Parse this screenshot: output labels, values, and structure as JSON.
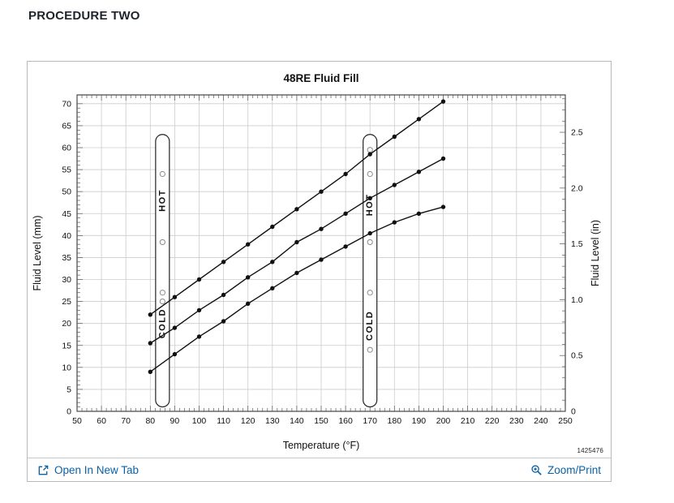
{
  "page": {
    "heading": "PROCEDURE TWO"
  },
  "panel": {
    "doc_number": "1425476"
  },
  "footer": {
    "open_label": "Open In New Tab",
    "zoom_label": "Zoom/Print"
  },
  "colors": {
    "link": "#0b61a4",
    "grid": "#cccccc",
    "line": "#111111",
    "axis": "#444444",
    "panel_border": "#b9b9b9"
  },
  "chart_data": {
    "type": "line",
    "title": "48RE Fluid Fill",
    "xlabel": "Temperature (°F)",
    "ylabel_left": "Fluid Level (mm)",
    "ylabel_right": "Fluid Level (in)",
    "xlim": [
      50,
      250
    ],
    "ylim": [
      0,
      72
    ],
    "x_major_step": 10,
    "x_minor_step": 2,
    "y_major_step": 5,
    "y_minor_step": 1,
    "y_label_max": 70,
    "grid": true,
    "legend": "none",
    "x": [
      80,
      90,
      100,
      110,
      120,
      130,
      140,
      150,
      160,
      170,
      180,
      190,
      200
    ],
    "series": [
      {
        "name": "upper-line",
        "values": [
          22,
          26,
          30,
          34,
          38,
          42,
          46,
          50,
          54,
          58.5,
          62.5,
          66.5,
          70.5
        ]
      },
      {
        "name": "middle-line",
        "values": [
          15.5,
          19,
          23,
          26.5,
          30.5,
          34,
          38.5,
          41.5,
          45,
          48.5,
          51.5,
          54.5,
          57.5
        ]
      },
      {
        "name": "lower-line",
        "values": [
          9,
          13,
          17,
          20.5,
          24.5,
          28,
          31.5,
          34.5,
          37.5,
          40.5,
          43,
          45,
          46.5
        ]
      }
    ],
    "right_axis": {
      "unit": "in",
      "mm_per_unit": 25.4,
      "minor_step": 0.1,
      "major_step": 0.5,
      "ticks": [
        {
          "value": 0,
          "label": "0"
        },
        {
          "value": 0.5,
          "label": "0.5"
        },
        {
          "value": 1,
          "label": "1.0"
        },
        {
          "value": 1.5,
          "label": "1.5"
        },
        {
          "value": 2,
          "label": "2.0"
        },
        {
          "value": 2.5,
          "label": "2.5"
        }
      ]
    },
    "dipsticks": [
      {
        "x_f": 85,
        "mm_bottom": 1,
        "mm_top": 63,
        "holes_mm": [
          54,
          38.5,
          27,
          25
        ],
        "labels": [
          {
            "text": "HOT",
            "mm": 48
          },
          {
            "text": "COLD",
            "mm": 20
          }
        ]
      },
      {
        "x_f": 170,
        "mm_bottom": 1,
        "mm_top": 63,
        "holes_mm": [
          59.5,
          54,
          38.5,
          27,
          14
        ],
        "labels": [
          {
            "text": "HOT",
            "mm": 47
          },
          {
            "text": "COLD",
            "mm": 19.5
          }
        ]
      }
    ]
  }
}
